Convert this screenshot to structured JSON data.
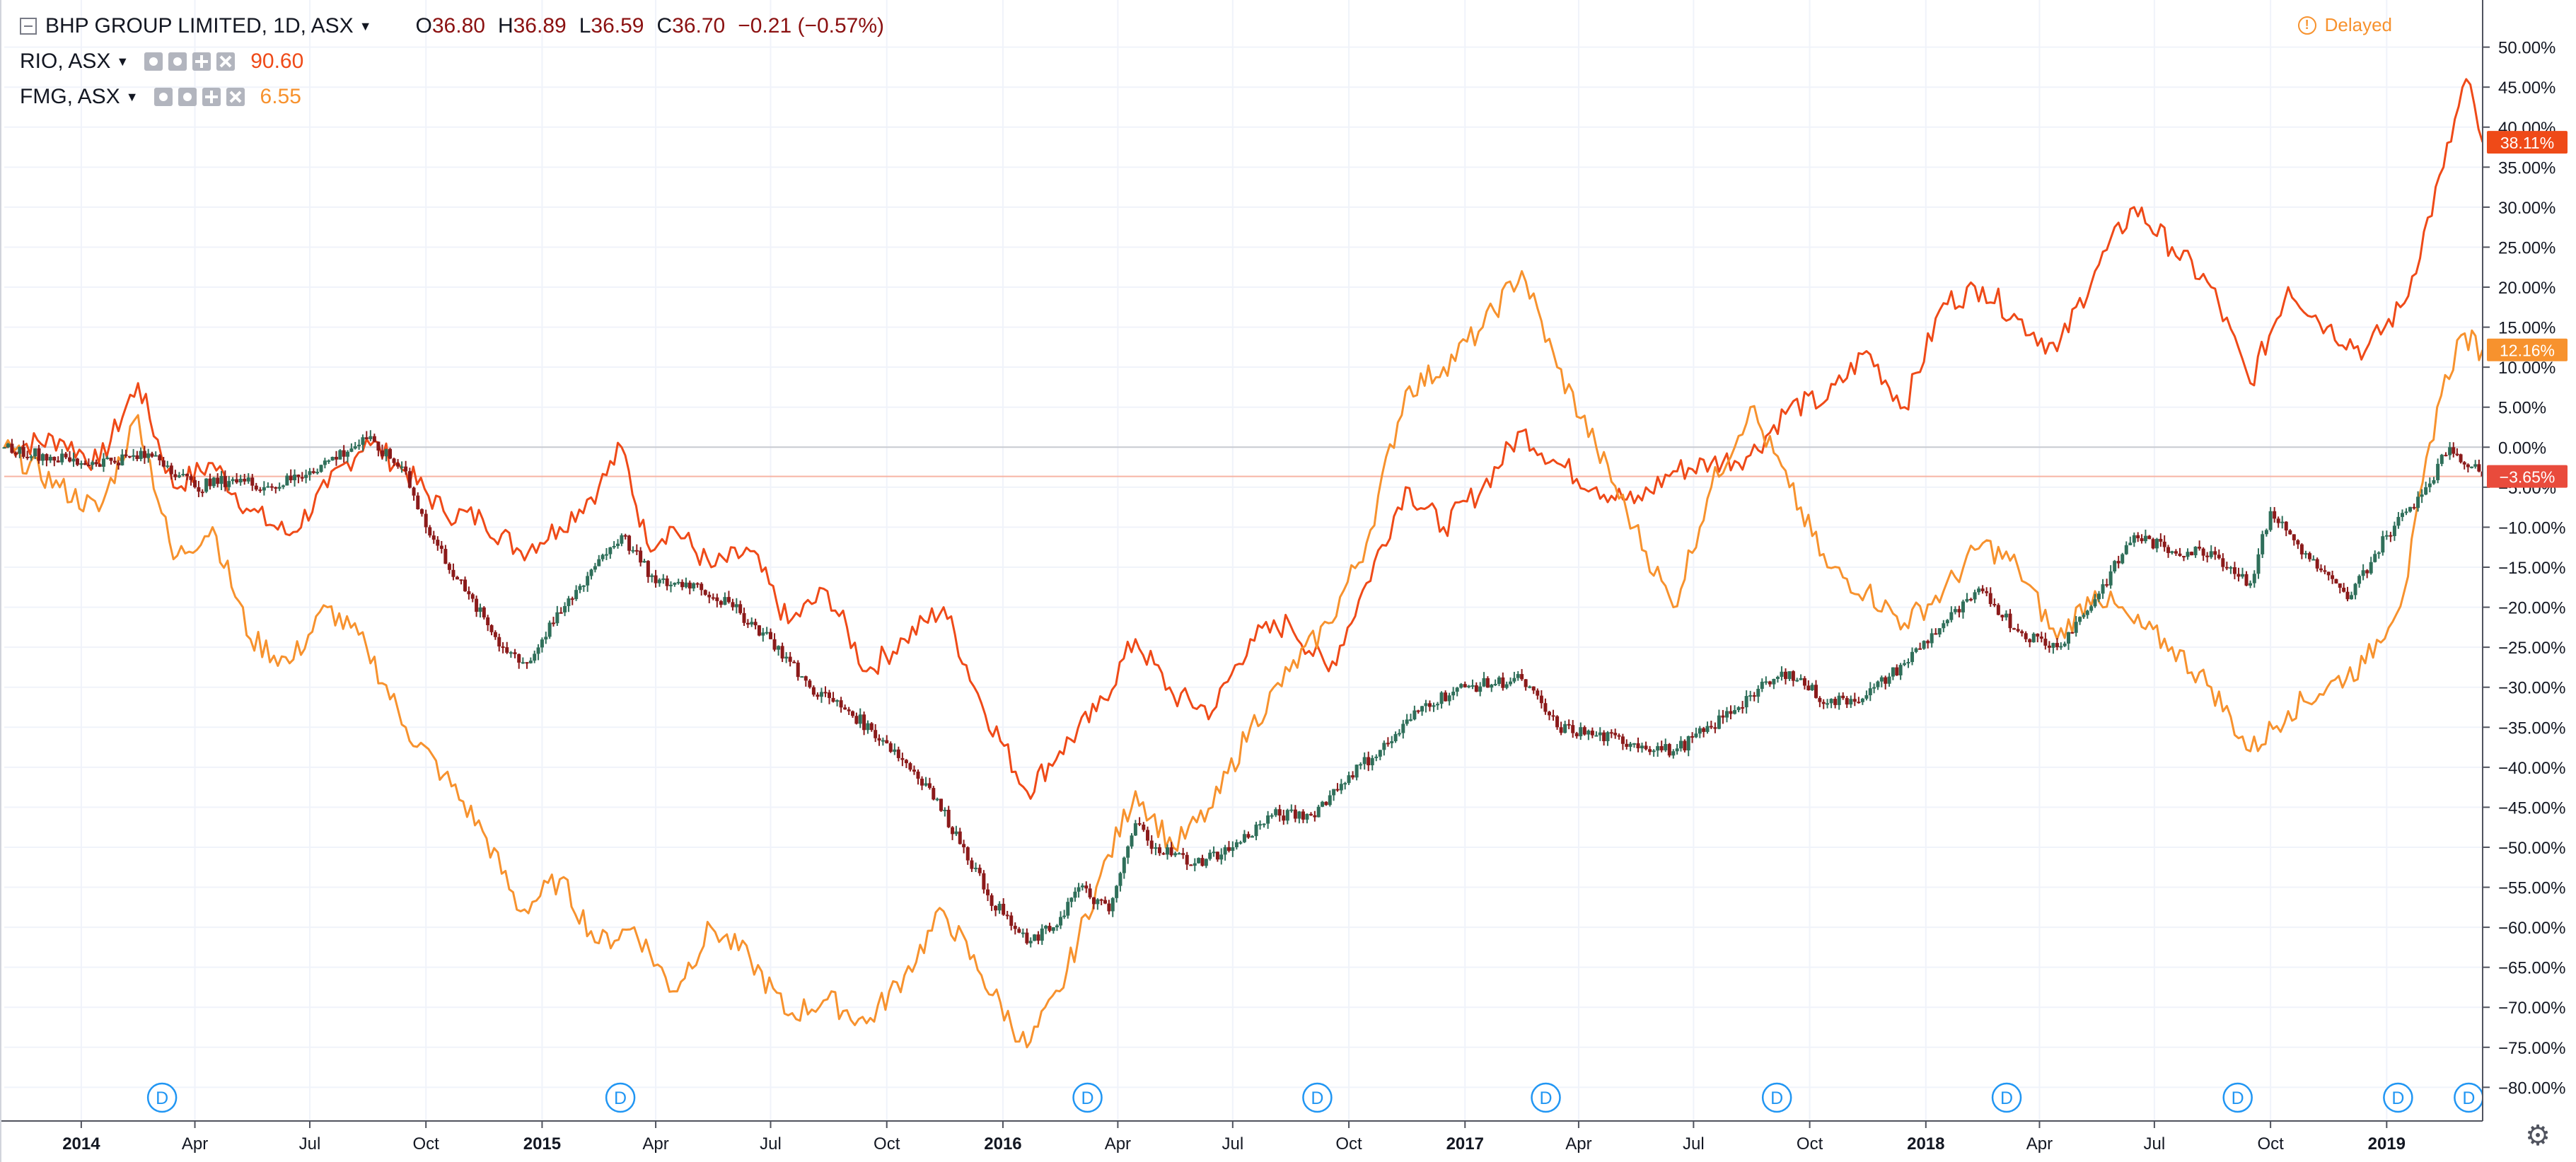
{
  "legend": {
    "main": {
      "symbol": "BHP GROUP LIMITED, 1D, ASX",
      "o_label": "O",
      "o": "36.80",
      "h_label": "H",
      "h": "36.89",
      "l_label": "L",
      "l": "36.59",
      "c_label": "C",
      "c": "36.70",
      "change": "−0.21 (−0.57%)"
    },
    "compare": [
      {
        "symbol": "RIO, ASX",
        "value": "90.60",
        "color": "#ef4a18"
      },
      {
        "symbol": "FMG, ASX",
        "value": "6.55",
        "color": "#f7922e"
      }
    ]
  },
  "status": {
    "delayed": "Delayed",
    "delayed_icon": "alert-circle-icon"
  },
  "settings_icon": "gear-icon",
  "colors": {
    "bhp_up": "#2f6f5a",
    "bhp_down": "#8b1a1a",
    "rio": "#ef4a18",
    "fmg": "#f7922e",
    "grid": "#f0f3fa",
    "axis": "#50535e",
    "dividend_badge": "#2196f3",
    "last_price_line": "#f7b4a5"
  },
  "chart_data": {
    "type": "line",
    "ylim": [
      -82,
      52
    ],
    "y_ticks": [
      "50.00%",
      "45.00%",
      "40.00%",
      "35.00%",
      "30.00%",
      "25.00%",
      "20.00%",
      "15.00%",
      "10.00%",
      "5.00%",
      "0.00%",
      "−5.00%",
      "−10.00%",
      "−15.00%",
      "−20.00%",
      "−25.00%",
      "−30.00%",
      "−35.00%",
      "−40.00%",
      "−45.00%",
      "−50.00%",
      "−55.00%",
      "−60.00%",
      "−65.00%",
      "−70.00%",
      "−75.00%",
      "−80.00%"
    ],
    "y_tick_values": [
      50,
      45,
      40,
      35,
      30,
      25,
      20,
      15,
      10,
      5,
      0,
      -5,
      -10,
      -15,
      -20,
      -25,
      -30,
      -35,
      -40,
      -45,
      -50,
      -55,
      -60,
      -65,
      -70,
      -75,
      -80
    ],
    "x_range": [
      "2013-11-01",
      "2019-03-18"
    ],
    "x_ticks": [
      {
        "label": "2014",
        "date": "2014-01-01",
        "year": true
      },
      {
        "label": "Apr",
        "date": "2014-04-01"
      },
      {
        "label": "Jul",
        "date": "2014-07-01"
      },
      {
        "label": "Oct",
        "date": "2014-10-01"
      },
      {
        "label": "2015",
        "date": "2015-01-01",
        "year": true
      },
      {
        "label": "Apr",
        "date": "2015-04-01"
      },
      {
        "label": "Jul",
        "date": "2015-07-01"
      },
      {
        "label": "Oct",
        "date": "2015-10-01"
      },
      {
        "label": "2016",
        "date": "2016-01-01",
        "year": true
      },
      {
        "label": "Apr",
        "date": "2016-04-01"
      },
      {
        "label": "Jul",
        "date": "2016-07-01"
      },
      {
        "label": "Oct",
        "date": "2016-10-01"
      },
      {
        "label": "2017",
        "date": "2017-01-01",
        "year": true
      },
      {
        "label": "Apr",
        "date": "2017-04-01"
      },
      {
        "label": "Jul",
        "date": "2017-07-01"
      },
      {
        "label": "Oct",
        "date": "2017-10-01"
      },
      {
        "label": "2018",
        "date": "2018-01-01",
        "year": true
      },
      {
        "label": "Apr",
        "date": "2018-04-01"
      },
      {
        "label": "Jul",
        "date": "2018-07-01"
      },
      {
        "label": "Oct",
        "date": "2018-10-01"
      },
      {
        "label": "2019",
        "date": "2019-01-01",
        "year": true
      }
    ],
    "dividend_markers": {
      "label": "D",
      "dates": [
        "2014-03-06",
        "2015-03-04",
        "2016-03-08",
        "2016-09-06",
        "2017-03-06",
        "2017-09-05",
        "2018-03-06",
        "2018-09-05",
        "2019-01-10",
        "2019-03-07"
      ]
    },
    "last_values": [
      {
        "name": "RIO",
        "label": "38.11%",
        "value": 38.11,
        "color": "#ef4a18"
      },
      {
        "name": "FMG",
        "label": "12.16%",
        "value": 12.16,
        "color": "#f7922e"
      },
      {
        "name": "BHP",
        "label": "−3.65%",
        "value": -3.65,
        "color": "#e94b3c"
      }
    ],
    "series": [
      {
        "name": "BHP",
        "kind": "candles",
        "color_up": "#2f6f5a",
        "color_down": "#8b1a1a",
        "points": [
          [
            "2013-11-01",
            0
          ],
          [
            "2014-01-01",
            -2
          ],
          [
            "2014-03-01",
            -1
          ],
          [
            "2014-04-01",
            -5
          ],
          [
            "2014-05-01",
            -4
          ],
          [
            "2014-06-01",
            -5
          ],
          [
            "2014-07-01",
            -3
          ],
          [
            "2014-08-15",
            1
          ],
          [
            "2014-09-15",
            -3
          ],
          [
            "2014-10-01",
            -10
          ],
          [
            "2014-11-01",
            -18
          ],
          [
            "2014-12-01",
            -25
          ],
          [
            "2014-12-20",
            -27
          ],
          [
            "2015-01-10",
            -22
          ],
          [
            "2015-02-15",
            -14
          ],
          [
            "2015-03-05",
            -11
          ],
          [
            "2015-04-01",
            -17
          ],
          [
            "2015-05-01",
            -17
          ],
          [
            "2015-06-01",
            -20
          ],
          [
            "2015-07-01",
            -24
          ],
          [
            "2015-08-01",
            -30
          ],
          [
            "2015-09-01",
            -33
          ],
          [
            "2015-10-01",
            -37
          ],
          [
            "2015-11-01",
            -42
          ],
          [
            "2015-12-01",
            -50
          ],
          [
            "2015-12-20",
            -56
          ],
          [
            "2016-01-20",
            -62
          ],
          [
            "2016-02-10",
            -60
          ],
          [
            "2016-03-01",
            -55
          ],
          [
            "2016-03-25",
            -58
          ],
          [
            "2016-04-15",
            -47
          ],
          [
            "2016-05-01",
            -50
          ],
          [
            "2016-06-01",
            -52
          ],
          [
            "2016-07-01",
            -50
          ],
          [
            "2016-08-01",
            -46
          ],
          [
            "2016-09-01",
            -46
          ],
          [
            "2016-10-01",
            -41
          ],
          [
            "2016-11-01",
            -37
          ],
          [
            "2016-12-01",
            -32
          ],
          [
            "2017-01-01",
            -30
          ],
          [
            "2017-02-15",
            -29
          ],
          [
            "2017-03-15",
            -35
          ],
          [
            "2017-04-15",
            -36
          ],
          [
            "2017-05-15",
            -37
          ],
          [
            "2017-06-15",
            -38
          ],
          [
            "2017-07-15",
            -35
          ],
          [
            "2017-08-15",
            -31
          ],
          [
            "2017-09-15",
            -28
          ],
          [
            "2017-10-15",
            -32
          ],
          [
            "2017-11-15",
            -31
          ],
          [
            "2017-12-15",
            -27
          ],
          [
            "2018-01-15",
            -22
          ],
          [
            "2018-02-15",
            -18
          ],
          [
            "2018-03-15",
            -23
          ],
          [
            "2018-04-15",
            -25
          ],
          [
            "2018-05-15",
            -19
          ],
          [
            "2018-06-15",
            -11
          ],
          [
            "2018-07-15",
            -13
          ],
          [
            "2018-08-15",
            -13
          ],
          [
            "2018-09-15",
            -17
          ],
          [
            "2018-10-01",
            -8
          ],
          [
            "2018-11-01",
            -14
          ],
          [
            "2018-12-01",
            -19
          ],
          [
            "2019-01-01",
            -11
          ],
          [
            "2019-02-01",
            -5
          ],
          [
            "2019-02-20",
            0
          ],
          [
            "2019-03-18",
            -3.65
          ]
        ]
      },
      {
        "name": "RIO",
        "kind": "line",
        "color": "#ef4a18",
        "points": [
          [
            "2013-11-01",
            0
          ],
          [
            "2013-12-15",
            1
          ],
          [
            "2014-01-15",
            -2
          ],
          [
            "2014-02-15",
            8
          ],
          [
            "2014-03-15",
            -5
          ],
          [
            "2014-04-15",
            -2
          ],
          [
            "2014-05-15",
            -8
          ],
          [
            "2014-06-15",
            -11
          ],
          [
            "2014-07-15",
            -5
          ],
          [
            "2014-08-15",
            1
          ],
          [
            "2014-09-15",
            -3
          ],
          [
            "2014-10-15",
            -8
          ],
          [
            "2014-11-15",
            -9
          ],
          [
            "2014-12-15",
            -13
          ],
          [
            "2015-01-15",
            -10
          ],
          [
            "2015-02-15",
            -5
          ],
          [
            "2015-03-05",
            0
          ],
          [
            "2015-03-25",
            -12
          ],
          [
            "2015-04-15",
            -10
          ],
          [
            "2015-05-15",
            -15
          ],
          [
            "2015-06-15",
            -13
          ],
          [
            "2015-07-15",
            -22
          ],
          [
            "2015-08-15",
            -18
          ],
          [
            "2015-09-15",
            -28
          ],
          [
            "2015-10-15",
            -24
          ],
          [
            "2015-11-15",
            -20
          ],
          [
            "2015-12-15",
            -32
          ],
          [
            "2016-01-20",
            -43
          ],
          [
            "2016-02-15",
            -38
          ],
          [
            "2016-03-15",
            -33
          ],
          [
            "2016-04-15",
            -24
          ],
          [
            "2016-05-15",
            -31
          ],
          [
            "2016-06-15",
            -33
          ],
          [
            "2016-07-15",
            -24
          ],
          [
            "2016-08-15",
            -22
          ],
          [
            "2016-09-15",
            -28
          ],
          [
            "2016-10-15",
            -17
          ],
          [
            "2016-11-15",
            -5
          ],
          [
            "2016-12-15",
            -10
          ],
          [
            "2017-01-15",
            -5
          ],
          [
            "2017-02-15",
            2
          ],
          [
            "2017-03-15",
            -2
          ],
          [
            "2017-04-15",
            -5
          ],
          [
            "2017-05-15",
            -7
          ],
          [
            "2017-06-15",
            -3
          ],
          [
            "2017-07-15",
            -2
          ],
          [
            "2017-08-15",
            -1
          ],
          [
            "2017-09-15",
            5
          ],
          [
            "2017-10-15",
            6
          ],
          [
            "2017-11-15",
            12
          ],
          [
            "2017-12-15",
            5
          ],
          [
            "2018-01-15",
            18
          ],
          [
            "2018-02-15",
            20
          ],
          [
            "2018-03-15",
            16
          ],
          [
            "2018-04-15",
            12
          ],
          [
            "2018-05-15",
            22
          ],
          [
            "2018-06-15",
            30
          ],
          [
            "2018-07-15",
            25
          ],
          [
            "2018-08-15",
            20
          ],
          [
            "2018-09-15",
            8
          ],
          [
            "2018-10-15",
            20
          ],
          [
            "2018-11-15",
            15
          ],
          [
            "2018-12-15",
            12
          ],
          [
            "2019-01-15",
            18
          ],
          [
            "2019-02-15",
            35
          ],
          [
            "2019-03-05",
            46
          ],
          [
            "2019-03-18",
            38.11
          ]
        ]
      },
      {
        "name": "FMG",
        "kind": "line",
        "color": "#f7922e",
        "points": [
          [
            "2013-11-01",
            0
          ],
          [
            "2013-12-15",
            -5
          ],
          [
            "2014-01-15",
            -8
          ],
          [
            "2014-02-15",
            4
          ],
          [
            "2014-03-15",
            -14
          ],
          [
            "2014-04-15",
            -10
          ],
          [
            "2014-05-15",
            -24
          ],
          [
            "2014-06-15",
            -27
          ],
          [
            "2014-07-15",
            -20
          ],
          [
            "2014-08-15",
            -25
          ],
          [
            "2014-09-15",
            -35
          ],
          [
            "2014-10-15",
            -41
          ],
          [
            "2014-11-15",
            -48
          ],
          [
            "2014-12-15",
            -58
          ],
          [
            "2015-01-15",
            -54
          ],
          [
            "2015-02-15",
            -62
          ],
          [
            "2015-03-15",
            -60
          ],
          [
            "2015-04-15",
            -68
          ],
          [
            "2015-05-15",
            -60
          ],
          [
            "2015-06-15",
            -64
          ],
          [
            "2015-07-15",
            -71
          ],
          [
            "2015-08-15",
            -69
          ],
          [
            "2015-09-15",
            -72
          ],
          [
            "2015-10-15",
            -66
          ],
          [
            "2015-11-15",
            -58
          ],
          [
            "2015-12-15",
            -66
          ],
          [
            "2016-01-20",
            -75
          ],
          [
            "2016-02-15",
            -68
          ],
          [
            "2016-03-15",
            -55
          ],
          [
            "2016-04-15",
            -43
          ],
          [
            "2016-05-15",
            -50
          ],
          [
            "2016-06-15",
            -45
          ],
          [
            "2016-07-15",
            -35
          ],
          [
            "2016-08-15",
            -28
          ],
          [
            "2016-09-15",
            -22
          ],
          [
            "2016-10-15",
            -12
          ],
          [
            "2016-11-15",
            7
          ],
          [
            "2016-12-15",
            10
          ],
          [
            "2017-01-15",
            15
          ],
          [
            "2017-02-15",
            22
          ],
          [
            "2017-03-15",
            10
          ],
          [
            "2017-04-15",
            0
          ],
          [
            "2017-05-15",
            -10
          ],
          [
            "2017-06-15",
            -20
          ],
          [
            "2017-07-15",
            -5
          ],
          [
            "2017-08-15",
            5
          ],
          [
            "2017-09-15",
            -5
          ],
          [
            "2017-10-15",
            -15
          ],
          [
            "2017-11-15",
            -18
          ],
          [
            "2017-12-15",
            -22
          ],
          [
            "2018-01-15",
            -18
          ],
          [
            "2018-02-15",
            -12
          ],
          [
            "2018-03-15",
            -15
          ],
          [
            "2018-04-15",
            -24
          ],
          [
            "2018-05-15",
            -18
          ],
          [
            "2018-06-15",
            -22
          ],
          [
            "2018-07-15",
            -25
          ],
          [
            "2018-08-15",
            -30
          ],
          [
            "2018-09-15",
            -38
          ],
          [
            "2018-10-15",
            -33
          ],
          [
            "2018-11-15",
            -30
          ],
          [
            "2018-12-15",
            -27
          ],
          [
            "2019-01-15",
            -18
          ],
          [
            "2019-02-10",
            5
          ],
          [
            "2019-03-01",
            14
          ],
          [
            "2019-03-18",
            12.16
          ]
        ]
      }
    ]
  }
}
